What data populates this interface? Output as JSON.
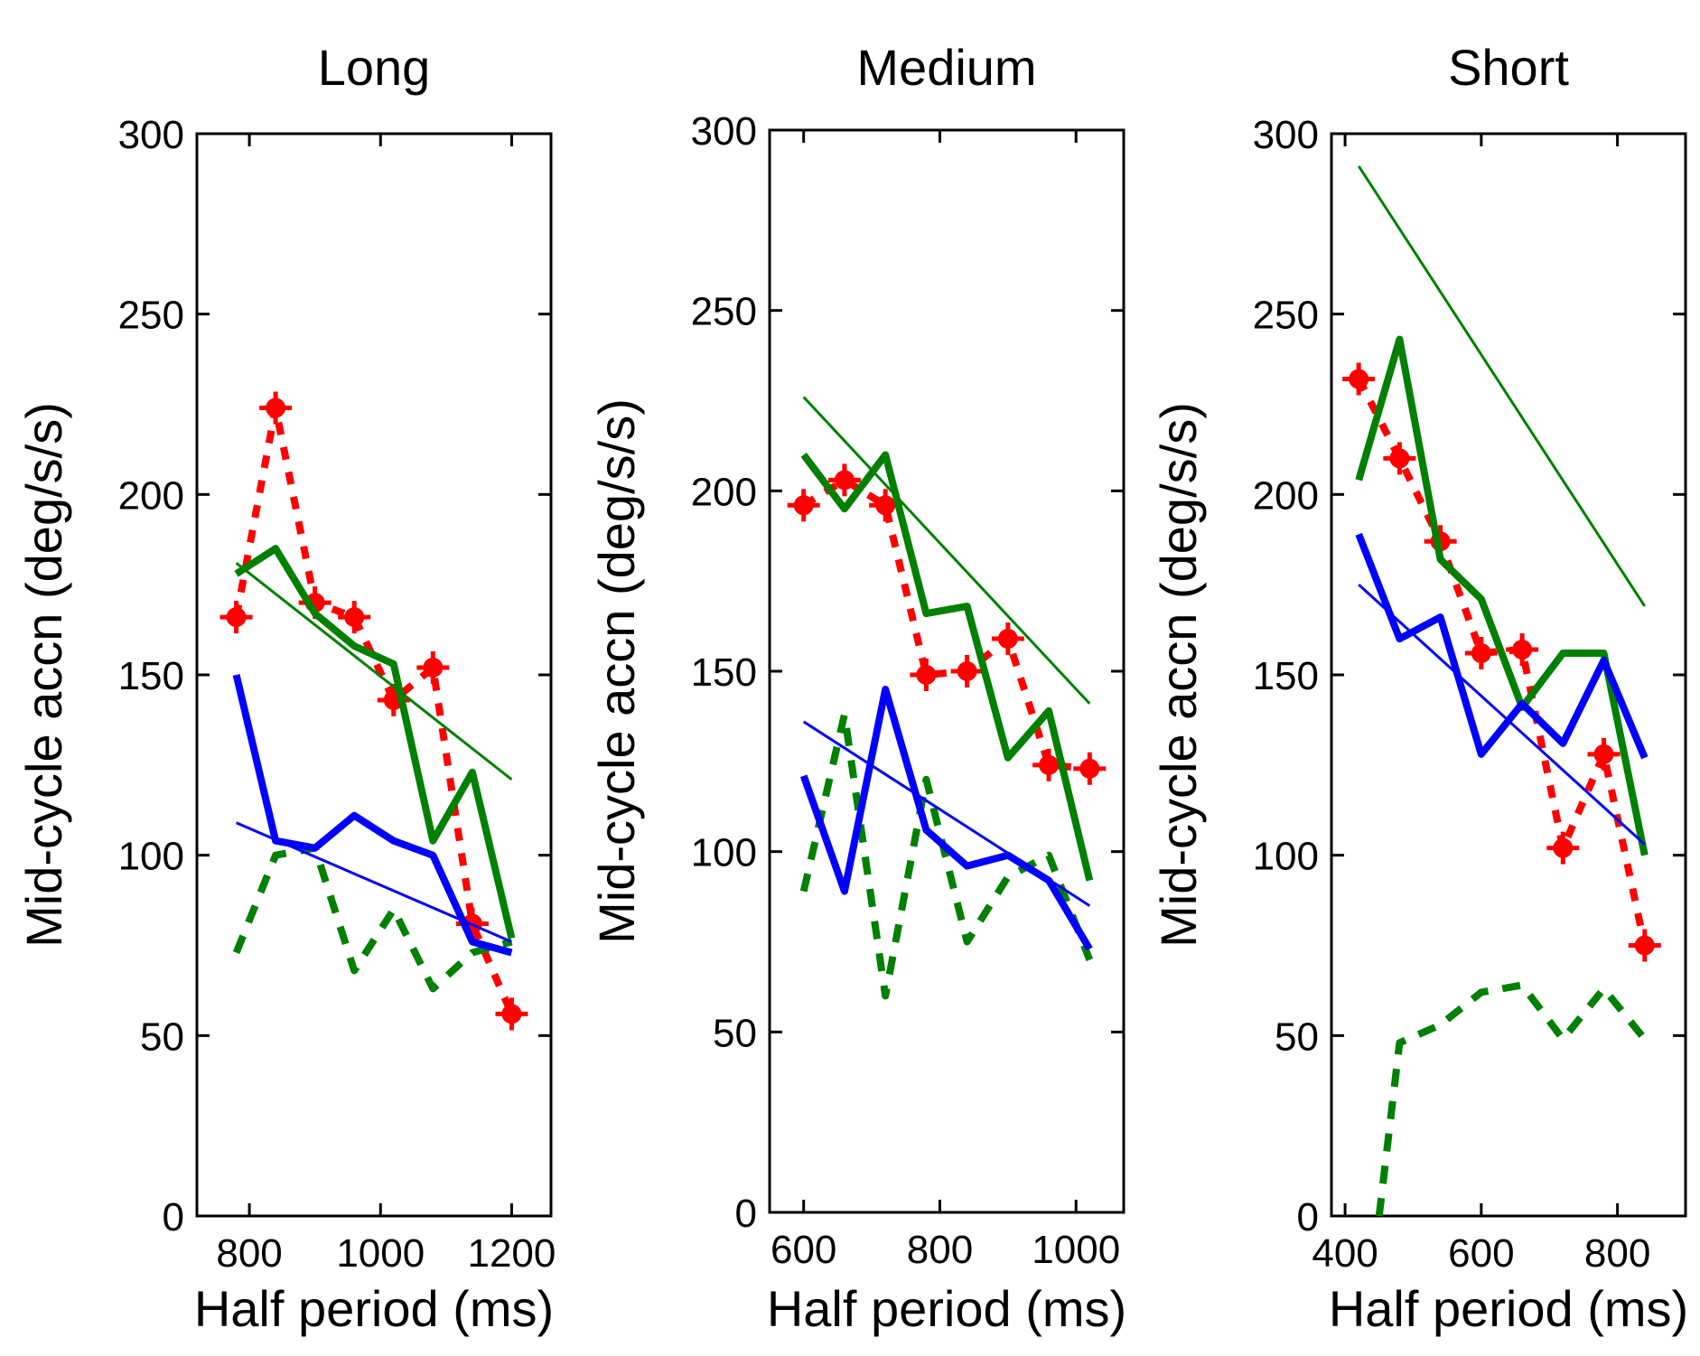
{
  "chart_data": [
    {
      "type": "line",
      "title": "Long",
      "xlabel": "Half period (ms)",
      "ylabel": "Mid-cycle accn (deg/s/s)",
      "xlim": [
        720,
        1260
      ],
      "ylim": [
        0,
        300
      ],
      "xticks": [
        800,
        1000,
        1200
      ],
      "yticks": [
        0,
        50,
        100,
        150,
        200,
        250,
        300
      ],
      "grid": false,
      "series": [
        {
          "style": "red-dotted-markers",
          "color": "#ff0000",
          "x": [
            780,
            840,
            900,
            960,
            1020,
            1080,
            1140,
            1200
          ],
          "y": [
            166,
            224,
            170,
            166,
            143,
            152,
            81,
            56
          ]
        },
        {
          "style": "green-thick",
          "color": "#008000",
          "x": [
            780,
            840,
            900,
            960,
            1020,
            1080,
            1140,
            1200
          ],
          "y": [
            178,
            185,
            167,
            158,
            153,
            104,
            123,
            77
          ]
        },
        {
          "style": "green-dashed",
          "color": "#008000",
          "x": [
            780,
            840,
            900,
            960,
            1020,
            1080,
            1140,
            1200
          ],
          "y": [
            73,
            100,
            102,
            68,
            85,
            63,
            73,
            76
          ]
        },
        {
          "style": "blue-thick",
          "color": "#0000ff",
          "x": [
            780,
            840,
            900,
            960,
            1020,
            1080,
            1140,
            1200
          ],
          "y": [
            150,
            104,
            102,
            111,
            104,
            100,
            76,
            73
          ]
        },
        {
          "style": "green-thin-fit",
          "color": "#008000",
          "x": [
            780,
            1200
          ],
          "y": [
            181,
            121
          ]
        },
        {
          "style": "blue-thin-fit",
          "color": "#0000ff",
          "x": [
            780,
            1200
          ],
          "y": [
            109,
            76
          ]
        }
      ]
    },
    {
      "type": "line",
      "title": "Medium",
      "xlabel": "Half period (ms)",
      "ylabel": "Mid-cycle accn (deg/s/s)",
      "xlim": [
        550,
        1070
      ],
      "ylim": [
        0,
        300
      ],
      "xticks": [
        600,
        800,
        1000
      ],
      "yticks": [
        0,
        50,
        100,
        150,
        200,
        250,
        300
      ],
      "grid": false,
      "series": [
        {
          "style": "red-dotted-markers",
          "color": "#ff0000",
          "x": [
            600,
            660,
            720,
            780,
            840,
            900,
            960,
            1020
          ],
          "y": [
            196,
            203,
            196,
            149,
            150,
            159,
            124,
            123
          ]
        },
        {
          "style": "green-thick",
          "color": "#008000",
          "x": [
            600,
            660,
            720,
            780,
            840,
            900,
            960,
            1020
          ],
          "y": [
            210,
            195,
            210,
            166,
            168,
            126,
            139,
            92
          ]
        },
        {
          "style": "green-dashed",
          "color": "#008000",
          "x": [
            600,
            660,
            720,
            780,
            840,
            900,
            960,
            1020
          ],
          "y": [
            89,
            138,
            60,
            120,
            75,
            93,
            99,
            70
          ]
        },
        {
          "style": "blue-thick",
          "color": "#0000ff",
          "x": [
            600,
            660,
            720,
            780,
            840,
            900,
            960,
            1020
          ],
          "y": [
            121,
            89,
            145,
            106,
            96,
            99,
            92,
            73
          ]
        },
        {
          "style": "green-thin-fit",
          "color": "#008000",
          "x": [
            600,
            1020
          ],
          "y": [
            226,
            141
          ]
        },
        {
          "style": "blue-thin-fit",
          "color": "#0000ff",
          "x": [
            600,
            1020
          ],
          "y": [
            136,
            85
          ]
        }
      ]
    },
    {
      "type": "line",
      "title": "Short",
      "xlabel": "Half period (ms)",
      "ylabel": "Mid-cycle accn (deg/s/s)",
      "xlim": [
        380,
        900
      ],
      "ylim": [
        0,
        300
      ],
      "xticks": [
        400,
        600,
        800
      ],
      "yticks": [
        0,
        50,
        100,
        150,
        200,
        250,
        300
      ],
      "grid": false,
      "series": [
        {
          "style": "red-dotted-markers",
          "color": "#ff0000",
          "x": [
            420,
            480,
            540,
            600,
            660,
            720,
            780,
            840
          ],
          "y": [
            232,
            210,
            187,
            156,
            157,
            102,
            128,
            75
          ]
        },
        {
          "style": "green-thick",
          "color": "#008000",
          "x": [
            420,
            480,
            540,
            600,
            660,
            720,
            780,
            840
          ],
          "y": [
            204,
            243,
            182,
            171,
            141,
            156,
            156,
            100
          ]
        },
        {
          "style": "green-dashed",
          "color": "#008000",
          "x": [
            450,
            480,
            540,
            600,
            660,
            720,
            780,
            840
          ],
          "y": [
            0,
            48,
            53,
            62,
            64,
            49,
            63,
            49
          ]
        },
        {
          "style": "blue-thick",
          "color": "#0000ff",
          "x": [
            420,
            480,
            540,
            600,
            660,
            720,
            780,
            840
          ],
          "y": [
            189,
            160,
            166,
            128,
            142,
            131,
            154,
            127
          ]
        },
        {
          "style": "green-thin-fit",
          "color": "#008000",
          "x": [
            420,
            840
          ],
          "y": [
            291,
            169
          ]
        },
        {
          "style": "blue-thin-fit",
          "color": "#0000ff",
          "x": [
            420,
            840
          ],
          "y": [
            175,
            103
          ]
        }
      ]
    }
  ]
}
